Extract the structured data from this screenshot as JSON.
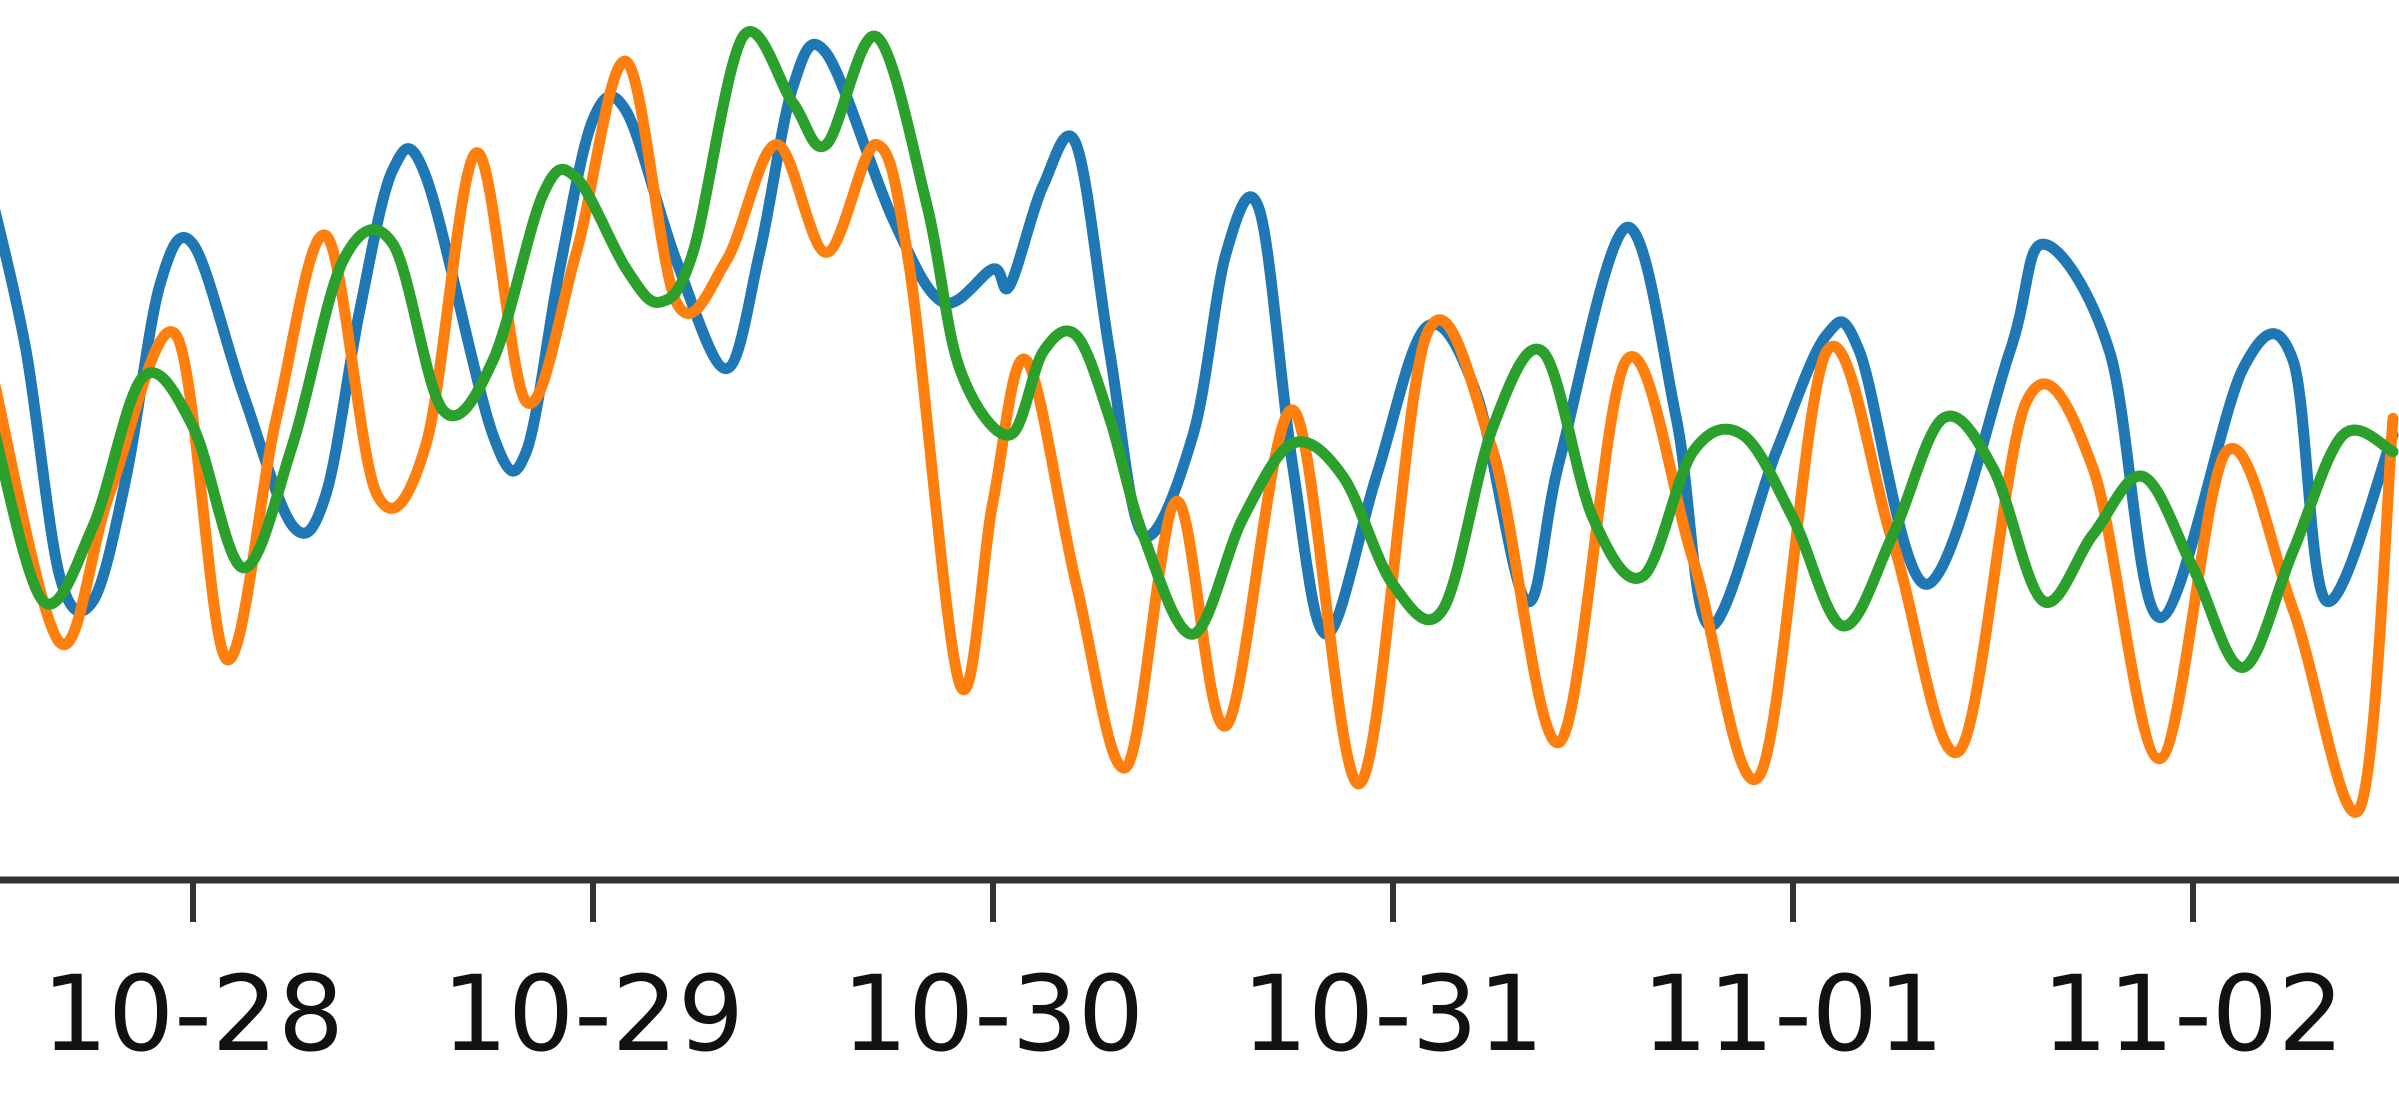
{
  "chart_data": {
    "type": "line",
    "xlabel": "",
    "ylabel": "",
    "x_ticks": [
      "10-28",
      "10-29",
      "10-30",
      "10-31",
      "11-01",
      "11-02"
    ],
    "x_range": [
      "10-27 12:00",
      "11-02 12:00"
    ],
    "ylim": [
      0,
      1
    ],
    "grid": false,
    "series": [
      {
        "color": "#1f77b4",
        "x": [
          "10-27 12:00",
          "10-27 14:00",
          "10-27 16:00",
          "10-27 18:00",
          "10-27 20:00",
          "10-27 22:00",
          "10-28 00:00",
          "10-28 03:00",
          "10-28 06:00",
          "10-28 08:00",
          "10-28 10:00",
          "10-28 12:00",
          "10-28 14:00",
          "10-28 18:00",
          "10-28 20:00",
          "10-28 22:00",
          "10-29 00:00",
          "10-29 02:00",
          "10-29 05:00",
          "10-29 08:00",
          "10-29 10:00",
          "10-29 12:00",
          "10-29 14:00",
          "10-29 18:00",
          "10-29 21:00",
          "10-30 00:00",
          "10-30 01:00",
          "10-30 03:00",
          "10-30 05:00",
          "10-30 07:00",
          "10-30 09:00",
          "10-30 12:00",
          "10-30 14:00",
          "10-30 16:00",
          "10-30 18:00",
          "10-30 20:00",
          "10-30 23:00",
          "10-31 02:00",
          "10-31 05:00",
          "10-31 08:00",
          "10-31 10:00",
          "10-31 14:00",
          "10-31 17:00",
          "10-31 19:00",
          "10-31 23:00",
          "11-01 02:00",
          "11-01 04:00",
          "11-01 08:00",
          "11-01 13:00",
          "11-01 15:00",
          "11-01 19:00",
          "11-01 22:00",
          "11-02 03:00",
          "11-02 06:00",
          "11-02 08:00",
          "11-02 12:00"
        ],
        "y": [
          0.78,
          0.6,
          0.33,
          0.3,
          0.45,
          0.68,
          0.73,
          0.55,
          0.39,
          0.43,
          0.65,
          0.82,
          0.81,
          0.5,
          0.48,
          0.7,
          0.88,
          0.89,
          0.71,
          0.58,
          0.72,
          0.92,
          0.96,
          0.76,
          0.66,
          0.7,
          0.68,
          0.8,
          0.85,
          0.6,
          0.38,
          0.5,
          0.72,
          0.77,
          0.46,
          0.26,
          0.45,
          0.63,
          0.55,
          0.3,
          0.47,
          0.75,
          0.52,
          0.27,
          0.48,
          0.62,
          0.6,
          0.32,
          0.6,
          0.73,
          0.6,
          0.28,
          0.58,
          0.59,
          0.3,
          0.5
        ]
      },
      {
        "color": "#ff7f0e",
        "x": [
          "10-27 12:00",
          "10-27 16:00",
          "10-27 19:00",
          "10-27 23:00",
          "10-28 02:00",
          "10-28 05:00",
          "10-28 08:00",
          "10-28 11:00",
          "10-28 14:00",
          "10-28 17:00",
          "10-28 20:00",
          "10-28 23:00",
          "10-29 02:00",
          "10-29 05:00",
          "10-29 08:00",
          "10-29 11:00",
          "10-29 14:00",
          "10-29 17:00",
          "10-29 19:00",
          "10-29 22:00",
          "10-30 00:00",
          "10-30 02:00",
          "10-30 05:00",
          "10-30 08:00",
          "10-30 11:00",
          "10-30 14:00",
          "10-30 18:00",
          "10-30 22:00",
          "10-31 02:00",
          "10-31 06:00",
          "10-31 10:00",
          "10-31 14:00",
          "10-31 18:00",
          "10-31 22:00",
          "11-01 02:00",
          "11-01 06:00",
          "11-01 10:00",
          "11-01 14:00",
          "11-01 18:00",
          "11-01 22:00",
          "11-02 02:00",
          "11-02 06:00",
          "11-02 10:00",
          "11-02 12:00"
        ],
        "y": [
          0.57,
          0.25,
          0.43,
          0.62,
          0.23,
          0.52,
          0.74,
          0.43,
          0.49,
          0.84,
          0.54,
          0.72,
          0.95,
          0.66,
          0.71,
          0.85,
          0.72,
          0.85,
          0.7,
          0.2,
          0.42,
          0.59,
          0.32,
          0.1,
          0.42,
          0.15,
          0.53,
          0.08,
          0.62,
          0.48,
          0.13,
          0.59,
          0.35,
          0.09,
          0.6,
          0.37,
          0.12,
          0.54,
          0.46,
          0.11,
          0.48,
          0.29,
          0.05,
          0.52
        ]
      },
      {
        "color": "#2ca02c",
        "x": [
          "10-27 12:00",
          "10-27 15:00",
          "10-27 18:00",
          "10-27 21:00",
          "10-28 00:00",
          "10-28 03:00",
          "10-28 06:00",
          "10-28 09:00",
          "10-28 12:00",
          "10-28 15:00",
          "10-28 18:00",
          "10-28 21:00",
          "10-28 23:00",
          "10-29 02:00",
          "10-29 04:00",
          "10-29 06:00",
          "10-29 09:00",
          "10-29 12:00",
          "10-29 14:00",
          "10-29 17:00",
          "10-29 20:00",
          "10-29 22:00",
          "10-30 01:00",
          "10-30 03:00",
          "10-30 05:00",
          "10-30 07:00",
          "10-30 09:00",
          "10-30 12:00",
          "10-30 15:00",
          "10-30 18:00",
          "10-30 21:00",
          "10-31 00:00",
          "10-31 03:00",
          "10-31 06:00",
          "10-31 09:00",
          "10-31 12:00",
          "10-31 15:00",
          "10-31 18:00",
          "10-31 21:00",
          "11-01 00:00",
          "11-01 03:00",
          "11-01 06:00",
          "11-01 09:00",
          "11-01 12:00",
          "11-01 15:00",
          "11-01 18:00",
          "11-01 21:00",
          "11-02 00:00",
          "11-02 03:00",
          "11-02 06:00",
          "11-02 09:00",
          "11-02 12:00"
        ],
        "y": [
          0.51,
          0.3,
          0.39,
          0.57,
          0.51,
          0.34,
          0.49,
          0.71,
          0.73,
          0.53,
          0.59,
          0.79,
          0.81,
          0.7,
          0.66,
          0.72,
          0.98,
          0.9,
          0.85,
          0.98,
          0.78,
          0.58,
          0.5,
          0.6,
          0.62,
          0.52,
          0.38,
          0.26,
          0.4,
          0.49,
          0.45,
          0.32,
          0.29,
          0.51,
          0.6,
          0.4,
          0.33,
          0.48,
          0.5,
          0.4,
          0.27,
          0.38,
          0.52,
          0.46,
          0.3,
          0.38,
          0.45,
          0.34,
          0.22,
          0.36,
          0.5,
          0.48
        ]
      }
    ]
  }
}
